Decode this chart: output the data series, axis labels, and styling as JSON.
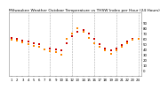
{
  "title": "Milwaukee Weather Outdoor Temperature vs THSW Index per Hour (24 Hours)",
  "title_fontsize": 3.2,
  "background_color": "#ffffff",
  "grid_color": "#aaaaaa",
  "tick_fontsize": 2.8,
  "xlim": [
    0.5,
    24.5
  ],
  "ylim": [
    -10,
    110
  ],
  "ytick_values": [
    90,
    80,
    70,
    60,
    50,
    40,
    30,
    20,
    10,
    0
  ],
  "ytick_labels": [
    "90",
    "80",
    "70",
    "60",
    "50",
    "40",
    "30",
    "20",
    "10",
    "0"
  ],
  "xtick_values": [
    1,
    2,
    3,
    4,
    5,
    6,
    7,
    8,
    9,
    10,
    11,
    12,
    13,
    14,
    15,
    16,
    17,
    18,
    19,
    20,
    21,
    22,
    23,
    24
  ],
  "vgrid_positions": [
    4,
    8,
    12,
    16,
    20,
    24
  ],
  "temp_hours": [
    1,
    2,
    3,
    4,
    5,
    6,
    8,
    9,
    10,
    11,
    12,
    13,
    14,
    15,
    16,
    17,
    18,
    19,
    20,
    21,
    22,
    23
  ],
  "temp_values": [
    62,
    60,
    57,
    55,
    52,
    49,
    42,
    40,
    38,
    52,
    65,
    72,
    76,
    70,
    60,
    50,
    42,
    38,
    42,
    48,
    55,
    60
  ],
  "thsw_hours": [
    1,
    2,
    3,
    4,
    5,
    6,
    7,
    8,
    9,
    10,
    11,
    12,
    13,
    14,
    15,
    16,
    17,
    18,
    19,
    20,
    21,
    22,
    23,
    24
  ],
  "thsw_values": [
    58,
    56,
    53,
    50,
    47,
    44,
    40,
    37,
    34,
    30,
    60,
    70,
    80,
    72,
    62,
    52,
    44,
    38,
    32,
    38,
    44,
    52,
    58,
    60
  ],
  "temp_color": "#cc0000",
  "thsw_color": "#ff8800",
  "dot_size": 3.5
}
